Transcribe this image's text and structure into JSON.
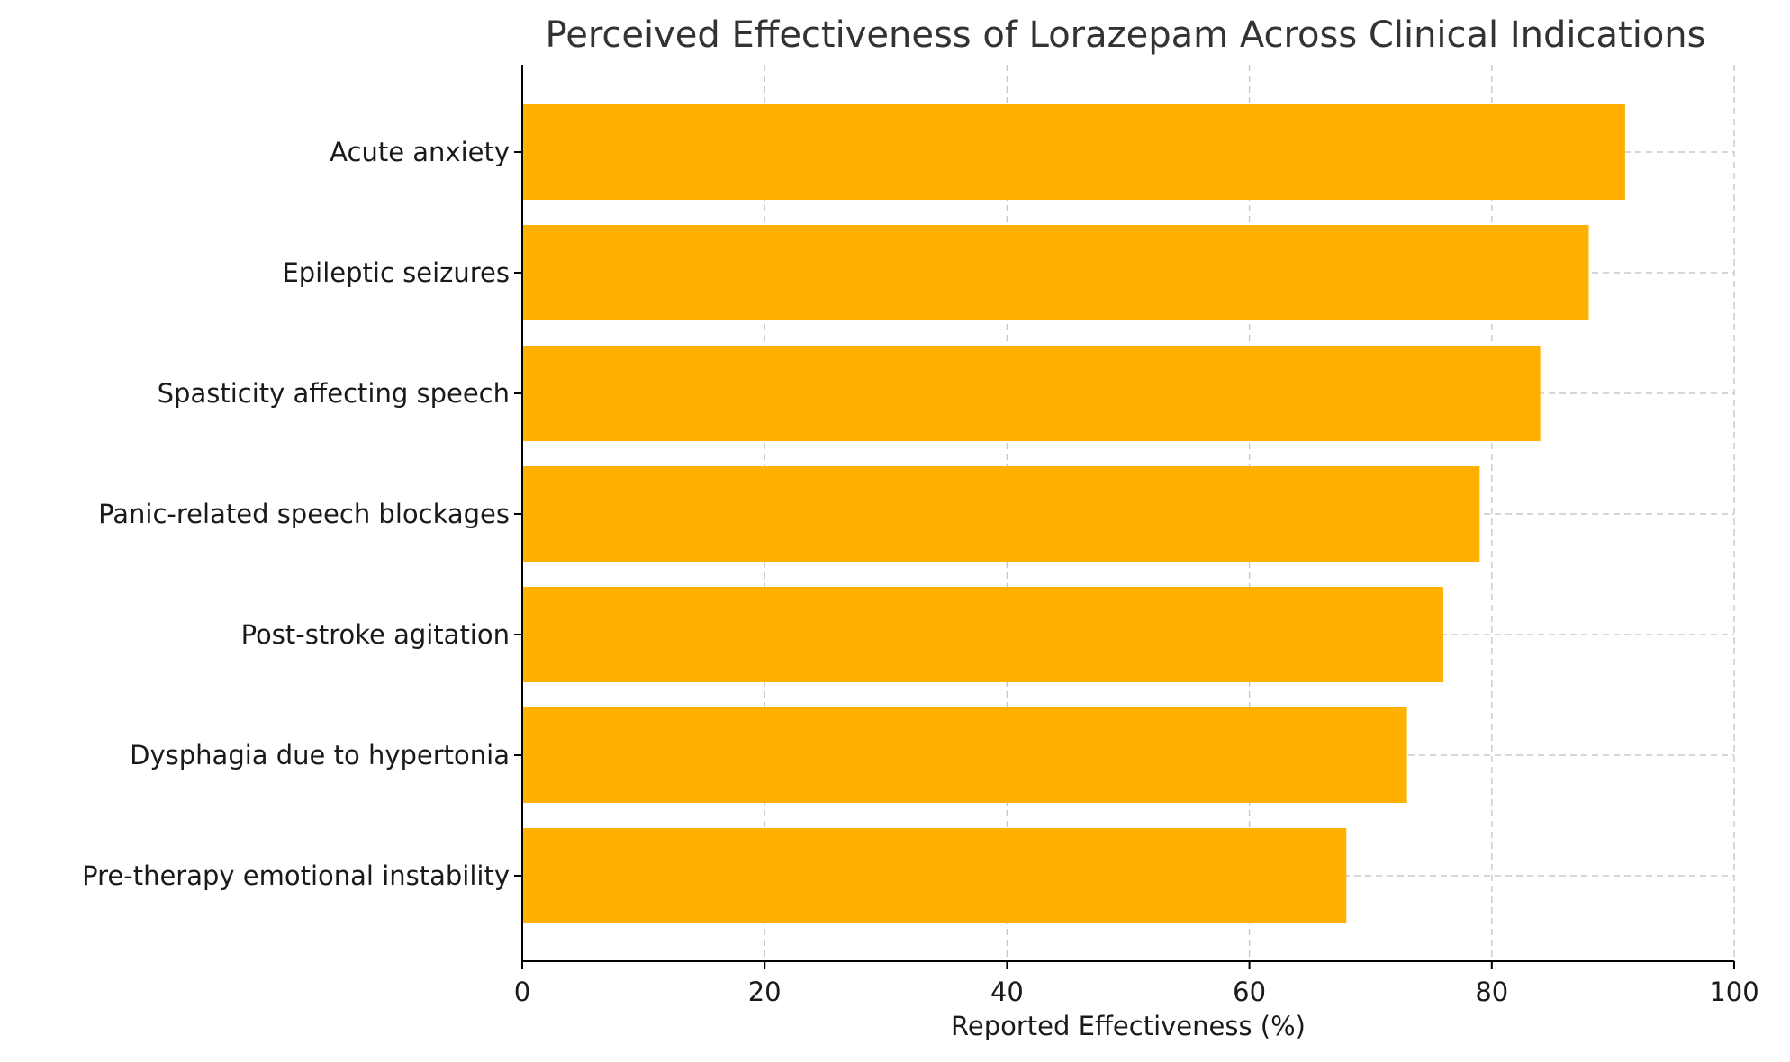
{
  "chart_data": {
    "type": "bar",
    "orientation": "horizontal",
    "title": "Perceived Effectiveness of Lorazepam Across Clinical Indications",
    "xlabel": "Reported Effectiveness (%)",
    "ylabel": "",
    "xlim": [
      0,
      100
    ],
    "xticks": [
      0,
      20,
      40,
      60,
      80,
      100
    ],
    "grid": true,
    "bar_color": "#ffb000",
    "categories": [
      "Acute anxiety",
      "Epileptic seizures",
      "Spasticity affecting speech",
      "Panic-related speech blockages",
      "Post-stroke agitation",
      "Dysphagia due to hypertonia",
      "Pre-therapy emotional instability"
    ],
    "values": [
      91,
      88,
      84,
      79,
      76,
      73,
      68
    ]
  }
}
